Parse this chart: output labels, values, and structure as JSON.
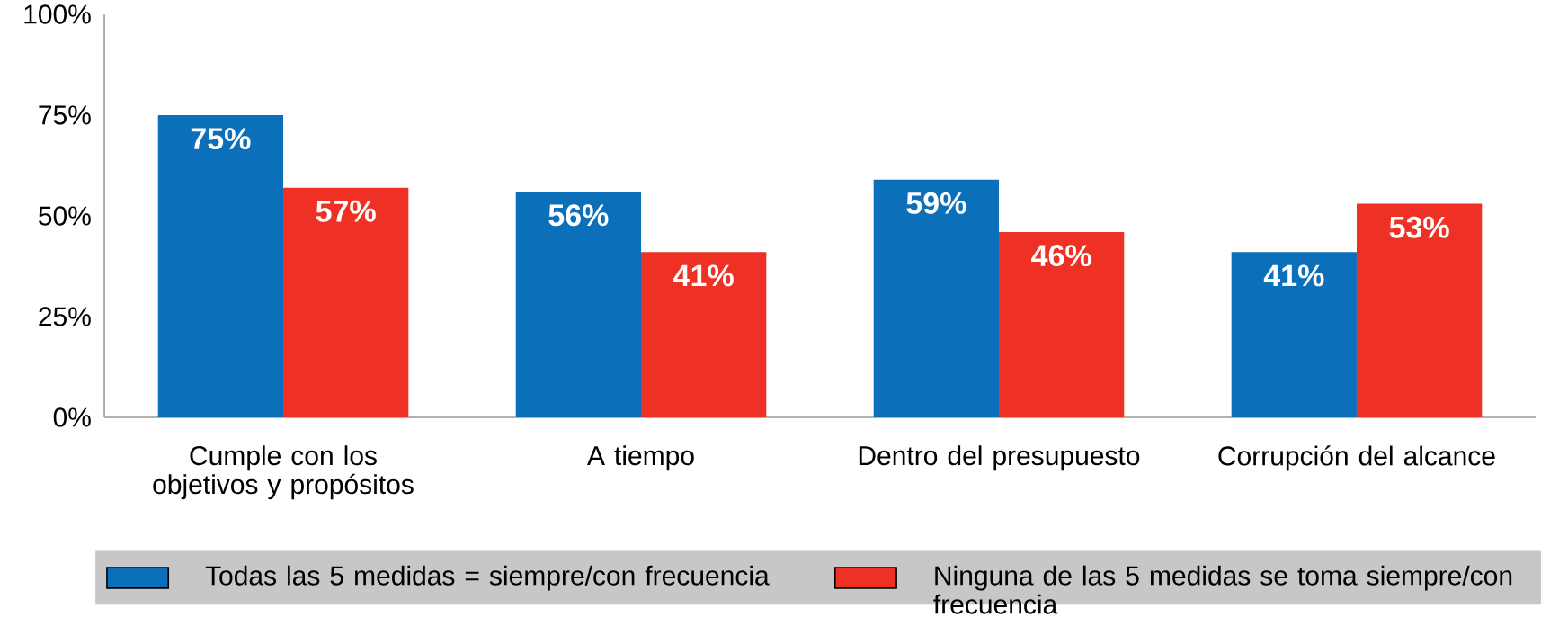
{
  "chart_data": {
    "type": "bar",
    "categories": [
      "Cumple con los objetivos y propósitos",
      "A tiempo",
      "Dentro del presupuesto",
      "Corrupción del alcance"
    ],
    "series": [
      {
        "name": "Todas las 5 medidas = siempre/con frecuencia",
        "color": "#0b6fba",
        "values": [
          75,
          56,
          59,
          41
        ],
        "value_labels": [
          "75%",
          "56%",
          "59%",
          "41%"
        ]
      },
      {
        "name": "Ninguna de las 5 medidas se toma siempre/con frecuencia",
        "color": "#ee3124",
        "values": [
          57,
          41,
          46,
          53
        ],
        "value_labels": [
          "57%",
          "41%",
          "46%",
          "53%"
        ]
      }
    ],
    "ylim": [
      0,
      100
    ],
    "yticks": [
      {
        "value": 0,
        "label": "0%"
      },
      {
        "value": 25,
        "label": "25%"
      },
      {
        "value": 50,
        "label": "50%"
      },
      {
        "value": 75,
        "label": "75%"
      },
      {
        "value": 100,
        "label": "100%"
      }
    ],
    "grid": false,
    "legend": "bottom"
  }
}
